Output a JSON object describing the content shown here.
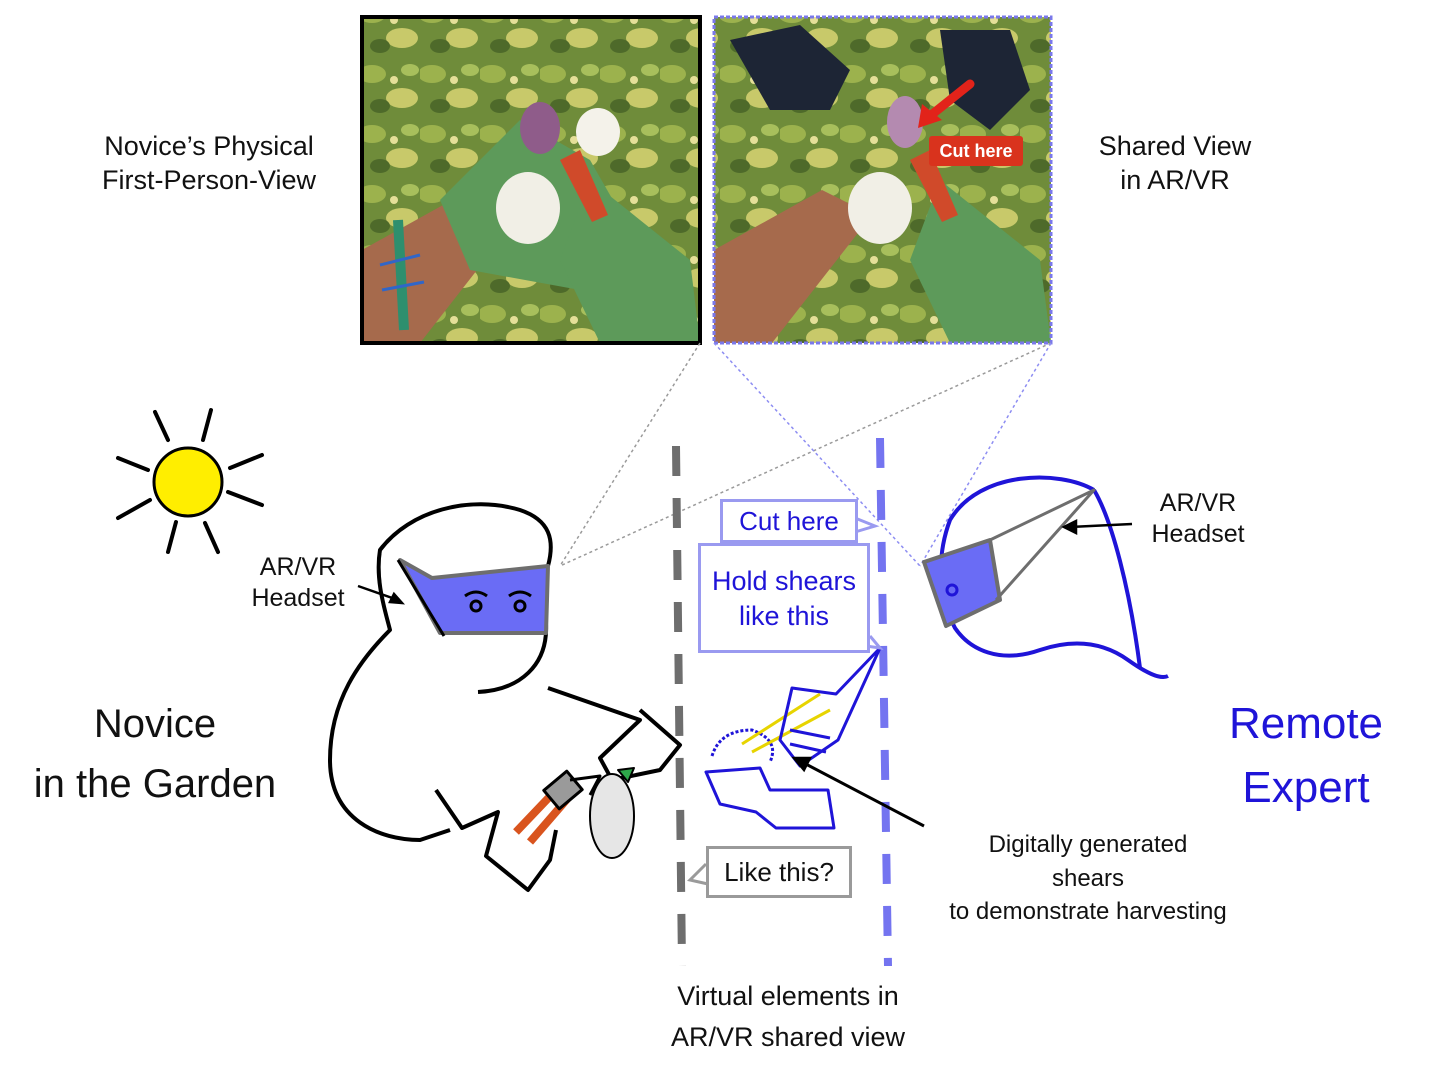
{
  "labels": {
    "novice_pov": [
      "Novice’s Physical",
      "First-Person-View"
    ],
    "shared_view": [
      "Shared View",
      "in AR/VR"
    ],
    "novice_headset": [
      "AR/VR",
      "Headset"
    ],
    "expert_headset": [
      "AR/VR",
      "Headset"
    ],
    "novice": [
      "Novice",
      "in the Garden"
    ],
    "expert": [
      "Remote",
      "Expert"
    ],
    "shears_note": [
      "Digitally generated",
      "shears",
      "to demonstrate harvesting"
    ],
    "virtual_elements": [
      "Virtual elements in",
      "AR/VR shared view"
    ]
  },
  "photo": {
    "overlay_label": "Cut here"
  },
  "bubbles": {
    "cut_here": "Cut here",
    "hold_shears": [
      "Hold shears",
      "like this"
    ],
    "like_this": "Like this?"
  },
  "colors": {
    "expert_blue": "#1f14d8",
    "headset_fill": "#6a6cf5",
    "sun": "#ffee00",
    "novice_divider": "#6e6e6e",
    "expert_divider": "#7474f0",
    "photo_label_red": "#d9331d"
  }
}
